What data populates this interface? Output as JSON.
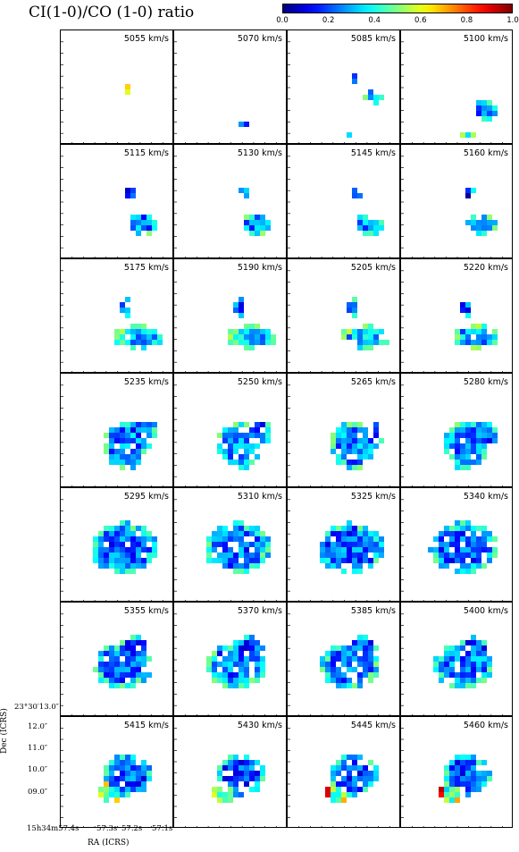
{
  "chart_data": {
    "type": "heatmap",
    "title": "CI(1-0)/CO (1-0) ratio",
    "colorbar": {
      "colormap": "jet",
      "range": [
        0.0,
        1.0
      ],
      "ticks": [
        "0.0",
        "0.2",
        "0.4",
        "0.6",
        "0.8",
        "1.0"
      ],
      "placement": "top-right"
    },
    "layout": {
      "rows": 7,
      "cols": 4,
      "grid": false
    },
    "channels": [
      "5055 km/s",
      "5070 km/s",
      "5085 km/s",
      "5100 km/s",
      "5115 km/s",
      "5130 km/s",
      "5145 km/s",
      "5160 km/s",
      "5175 km/s",
      "5190 km/s",
      "5205 km/s",
      "5220 km/s",
      "5235 km/s",
      "5250 km/s",
      "5265 km/s",
      "5280 km/s",
      "5295 km/s",
      "5310 km/s",
      "5325 km/s",
      "5340 km/s",
      "5355 km/s",
      "5370 km/s",
      "5385 km/s",
      "5400 km/s",
      "5415 km/s",
      "5430 km/s",
      "5445 km/s",
      "5460 km/s"
    ],
    "xlabel": "RA (ICRS)",
    "ylabel": "Dec (ICRS)",
    "xticks": [
      "15h34m57.4s",
      "57.3s",
      "57.2s",
      "57.1s"
    ],
    "yticks": [
      "23°30′13.0″",
      "12.0″",
      "11.0″",
      "10.0″",
      "09.0″"
    ]
  },
  "colors": {
    "frame": "#000000",
    "background": "#ffffff"
  }
}
